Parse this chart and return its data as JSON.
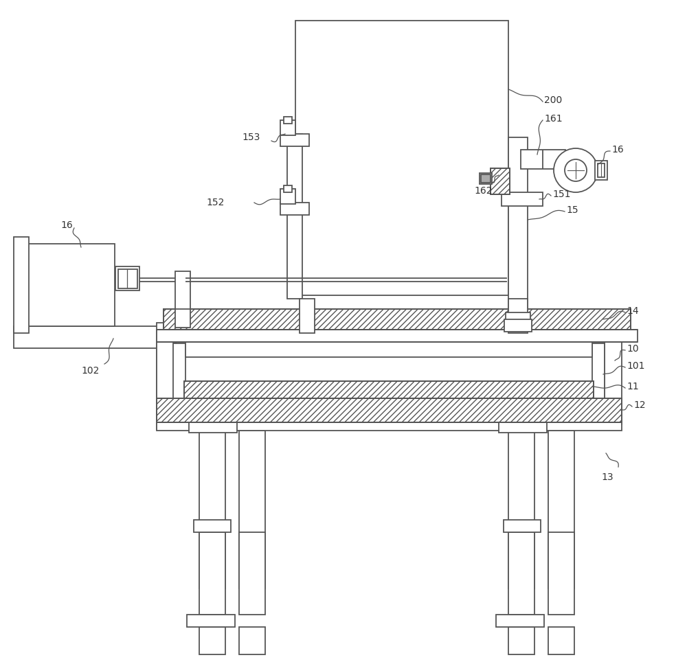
{
  "bg_color": "#ffffff",
  "line_color": "#555555",
  "fig_width": 10.0,
  "fig_height": 9.64,
  "label_fontsize": 10,
  "label_color": "#333333"
}
